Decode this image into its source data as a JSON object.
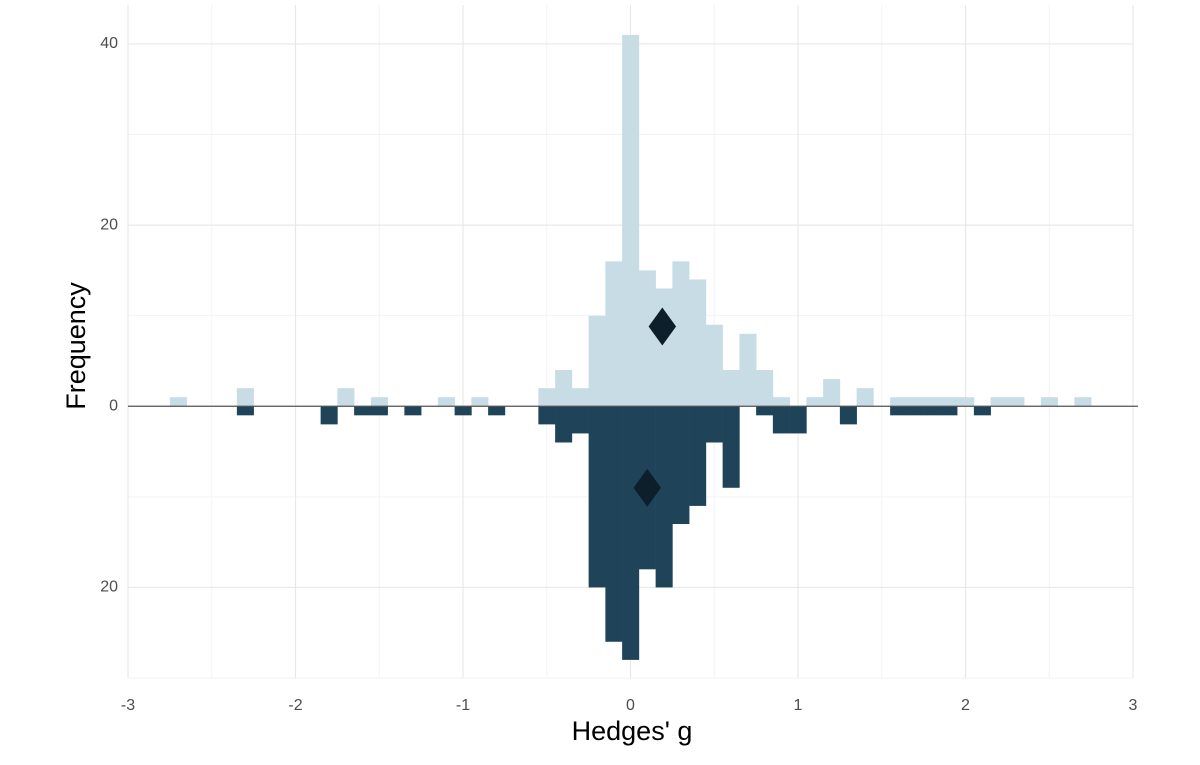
{
  "chart_data": {
    "type": "histogram",
    "x_label": "Hedges' g",
    "y_label": "Frequency",
    "bins": [
      -2.75,
      -2.65,
      -2.55,
      -2.45,
      -2.35,
      -2.25,
      -2.15,
      -2.05,
      -1.95,
      -1.85,
      -1.75,
      -1.65,
      -1.55,
      -1.45,
      -1.35,
      -1.25,
      -1.15,
      -1.05,
      -0.95,
      -0.85,
      -0.75,
      -0.65,
      -0.55,
      -0.45,
      -0.35,
      -0.25,
      -0.15,
      -0.05,
      0.05,
      0.15,
      0.25,
      0.35,
      0.45,
      0.55,
      0.65,
      0.75,
      0.85,
      0.95,
      1.05,
      1.15,
      1.25,
      1.35,
      1.45,
      1.55,
      1.65,
      1.75,
      1.85,
      1.95,
      2.05,
      2.15,
      2.25,
      2.35,
      2.45,
      2.55,
      2.65,
      2.75
    ],
    "series": [
      {
        "color": "#c8dce6",
        "values": [
          1,
          0,
          0,
          0,
          2,
          0,
          0,
          0,
          0,
          0,
          2,
          0,
          1,
          0,
          0,
          0,
          1,
          0,
          1,
          0,
          0,
          0,
          2,
          4,
          2,
          10,
          16,
          41,
          15,
          13,
          16,
          14,
          9,
          4,
          8,
          4,
          1,
          0,
          1,
          3,
          0,
          2,
          0,
          1,
          1,
          1,
          1,
          1,
          0,
          1,
          1,
          0,
          1,
          0,
          1
        ]
      },
      {
        "color": "#1f4459",
        "values": [
          0,
          0,
          0,
          0,
          -1,
          0,
          0,
          0,
          0,
          -2,
          0,
          -1,
          -1,
          0,
          -1,
          0,
          0,
          -1,
          0,
          -1,
          0,
          0,
          -2,
          -4,
          -3,
          -20,
          -26,
          -28,
          -18,
          -20,
          -13,
          -11,
          -4,
          -9,
          0,
          -1,
          -3,
          -3,
          0,
          0,
          -2,
          0,
          0,
          -1,
          -1,
          -1,
          -1,
          0,
          -1,
          0,
          0,
          0,
          0,
          0,
          0
        ]
      }
    ],
    "points": [
      {
        "x": 0.19,
        "y": 8.8
      },
      {
        "x": 0.1,
        "y": -9
      }
    ],
    "point_color": "#0d1f2a",
    "xlim": [
      -3,
      3
    ],
    "ylim": [
      -30,
      44.3
    ],
    "xticks": [
      -3,
      -2,
      -1,
      0,
      1,
      2,
      3
    ],
    "yticks": [
      {
        "value": -20,
        "label": "20"
      },
      0,
      20,
      40
    ],
    "minor_xticks": [
      -2.5,
      -1.5,
      -0.5,
      0.5,
      1.5,
      2.5
    ],
    "minor_yticks": [
      -30,
      -10,
      10,
      30
    ],
    "grid": true
  }
}
